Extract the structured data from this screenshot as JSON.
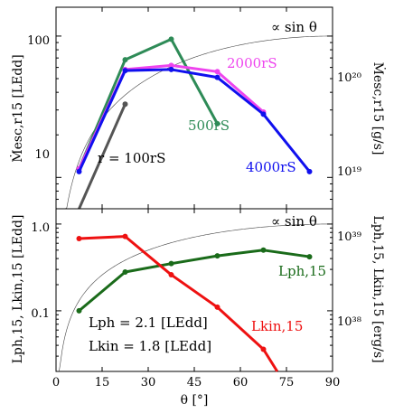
{
  "chart_data": [
    {
      "type": "line",
      "yscale": "log",
      "xlim": [
        0,
        90
      ],
      "ylim": [
        6,
        160
      ],
      "yticks": [
        {
          "value": 10,
          "label": "10"
        },
        {
          "value": 100,
          "label": "100"
        }
      ],
      "ylabel": "Ṁesc,r15 [LEdd]",
      "right_axis": {
        "label": "Ṁesc,r15 [g/s]",
        "ticks": [
          "10²⁰",
          "10¹⁹"
        ]
      },
      "reference_curve": {
        "label": "∝ sin θ",
        "color": "#000000"
      },
      "series": [
        {
          "name": "r = 100rS",
          "color": "#555555",
          "x": [
            7.5,
            22.5
          ],
          "y": [
            6,
            33
          ]
        },
        {
          "name": "500rS",
          "color": "#2e8b57",
          "x": [
            7.5,
            22.5,
            37.5,
            52.5
          ],
          "y": [
            11.5,
            68,
            95,
            24
          ]
        },
        {
          "name": "2000rS",
          "color": "#ee44ee",
          "x": [
            7.5,
            22.5,
            37.5,
            52.5,
            67.5
          ],
          "y": [
            11.5,
            58,
            62,
            56,
            29
          ]
        },
        {
          "name": "4000rS",
          "color": "#1010ee",
          "x": [
            7.5,
            22.5,
            37.5,
            52.5,
            67.5,
            82.5
          ],
          "y": [
            11,
            57,
            58,
            51,
            28,
            11
          ]
        }
      ]
    },
    {
      "type": "line",
      "yscale": "log",
      "xlim": [
        0,
        90
      ],
      "ylim": [
        0.02,
        1.5
      ],
      "xticks": [
        0,
        15,
        30,
        45,
        60,
        75,
        90
      ],
      "xlabel": "θ [°]",
      "yticks": [
        {
          "value": 0.1,
          "label": "0.1"
        },
        {
          "value": 1.0,
          "label": "1.0"
        }
      ],
      "ylabel": "Lph,15, Lkin,15 [LEdd]",
      "right_axis": {
        "label": "Lph,15, Lkin,15 [erg/s]",
        "ticks": [
          "10³⁹",
          "10³⁸"
        ]
      },
      "reference_curve": {
        "label": "∝ sin θ",
        "color": "#000000"
      },
      "annotations": [
        "Lph = 2.1 [LEdd]",
        "Lkin = 1.8 [LEdd]"
      ],
      "series": [
        {
          "name": "Lph,15",
          "color": "#1a6b1a",
          "x": [
            7.5,
            22.5,
            37.5,
            52.5,
            67.5,
            82.5
          ],
          "y": [
            0.1,
            0.28,
            0.35,
            0.43,
            0.5,
            0.42
          ]
        },
        {
          "name": "Lkin,15",
          "color": "#ee1111",
          "x": [
            7.5,
            22.5,
            37.5,
            52.5,
            67.5,
            72
          ],
          "y": [
            0.68,
            0.72,
            0.26,
            0.11,
            0.036,
            0.02
          ]
        }
      ]
    }
  ]
}
